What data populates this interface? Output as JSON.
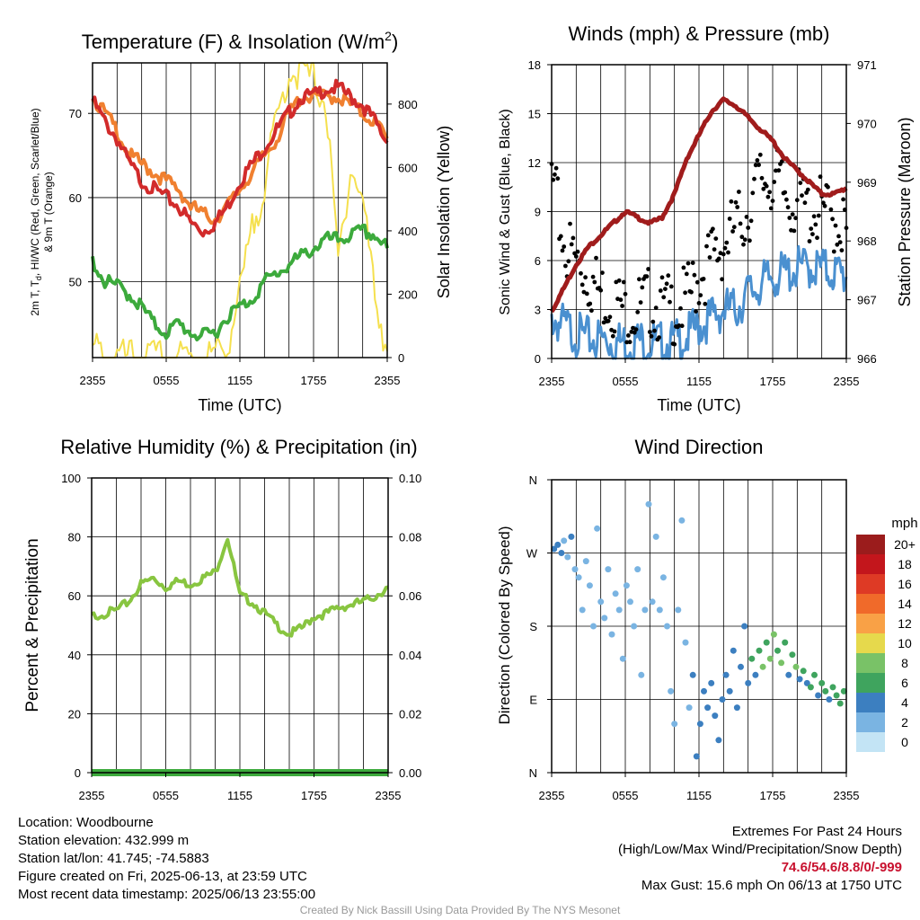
{
  "x_ticks": [
    "2355",
    "0555",
    "1155",
    "1755",
    "2355"
  ],
  "temperature_panel": {
    "title": "Temperature (F) & Insolation (W/m",
    "title_sup": "2",
    "title_end": ")",
    "xlabel": "Time (UTC)",
    "ylabel_line1_pre": "2m T, T",
    "ylabel_line1_sub": "d",
    "ylabel_line1_post": ", HI/WC (Red, Green, Scarlet/Blue)",
    "ylabel_line2": "& 9m T (Orange)",
    "y2label": "Solar Insolation (Yellow)"
  },
  "wind_panel": {
    "title": "Winds (mph) & Pressure (mb)",
    "xlabel": "Time (UTC)",
    "ylabel": "Sonic Wind & Gust (Blue, Black)",
    "y2label": "Station Pressure (Maroon)"
  },
  "rh_panel": {
    "title": "Relative Humidity (%) & Precipitation (in)",
    "ylabel": "Percent & Precipitation"
  },
  "dir_panel": {
    "title": "Wind Direction",
    "ylabel": "Direction (Colored By Speed)",
    "colorbar_title": "mph",
    "colorbar_labels": [
      "20+",
      "18",
      "16",
      "14",
      "12",
      "10",
      "8",
      "6",
      "4",
      "2",
      "0"
    ],
    "colorbar_colors": [
      "#9b1c1c",
      "#c3161c",
      "#de3a25",
      "#f06a2a",
      "#f9a146",
      "#e6d94c",
      "#79c267",
      "#3fa45e",
      "#3c7fc0",
      "#7ab4e2",
      "#c3e4f5"
    ]
  },
  "info_left": {
    "location": "Location: Woodbourne",
    "elevation": "Station elevation: 432.999 m",
    "latlon": "Station lat/lon: 41.745; -74.5883",
    "created": "Figure created on Fri, 2025-06-13, at 23:59 UTC",
    "recent": "Most recent data timestamp: 2025/06/13 23:55:00"
  },
  "info_right": {
    "line1": "Extremes For Past 24 Hours",
    "line2": "(High/Low/Max Wind/Precipitation/Snow Depth)",
    "values": "74.6/54.6/8.8/0/-999",
    "gust": "Max Gust: 15.6 mph On 06/13 at 1750 UTC"
  },
  "credit": "Created By Nick Bassill Using Data Provided By The NYS Mesonet",
  "chart_data": [
    {
      "type": "line",
      "title": "Temperature (F) & Insolation (W/m2)",
      "xlabel": "Time (UTC)",
      "ylabel": "2m T, Td, HI/WC (Red, Green, Scarlet/Blue) & 9m T (Orange)",
      "y2label": "Solar Insolation (Yellow)",
      "x": [
        0,
        1,
        2,
        3,
        4,
        5,
        6,
        7,
        8,
        9,
        10,
        11,
        12,
        13,
        14,
        15,
        16,
        17,
        18,
        19,
        20,
        21,
        22,
        23,
        24
      ],
      "x_tick_labels": [
        "2355",
        "0555",
        "1155",
        "1755",
        "2355"
      ],
      "x_tick_positions": [
        0,
        6,
        12,
        18,
        24
      ],
      "ylim": [
        41,
        76
      ],
      "yticks": [
        50,
        60,
        70
      ],
      "y2lim": [
        0,
        930
      ],
      "y2ticks": [
        0,
        200,
        400,
        600,
        800
      ],
      "series": [
        {
          "name": "2m T",
          "color": "#d22b2b",
          "axis": "left",
          "values": [
            71.5,
            69,
            67,
            64,
            62,
            61,
            60,
            59,
            57,
            56,
            57,
            59,
            62,
            64,
            66,
            68,
            70,
            72,
            72,
            73,
            73,
            72,
            71,
            69,
            66.5
          ]
        },
        {
          "name": "9m T",
          "color": "#f08030",
          "axis": "left",
          "values": [
            72,
            70,
            68,
            65,
            64,
            63,
            62,
            61,
            59,
            58,
            57.5,
            59,
            61,
            63,
            65,
            67,
            70,
            72,
            72,
            72,
            72,
            71,
            70,
            69,
            67
          ]
        },
        {
          "name": "Td",
          "color": "#3caa3c",
          "axis": "left",
          "values": [
            52.5,
            50,
            49.5,
            48.5,
            47,
            45,
            44,
            45,
            44,
            43.5,
            44,
            46,
            47,
            48,
            50,
            51,
            52,
            53,
            54,
            55,
            55,
            55.5,
            56,
            55.5,
            54
          ]
        },
        {
          "name": "Solar Insolation",
          "color": "#f5e04e",
          "axis": "right",
          "values": [
            30,
            5,
            0,
            0,
            0,
            0,
            0,
            0,
            0,
            0,
            10,
            40,
            200,
            400,
            550,
            750,
            900,
            900,
            880,
            800,
            300,
            600,
            500,
            200,
            20
          ]
        }
      ]
    },
    {
      "type": "line",
      "title": "Winds (mph) & Pressure (mb)",
      "xlabel": "Time (UTC)",
      "ylabel": "Sonic Wind & Gust (Blue, Black)",
      "y2label": "Station Pressure (Maroon)",
      "x": [
        0,
        1,
        2,
        3,
        4,
        5,
        6,
        7,
        8,
        9,
        10,
        11,
        12,
        13,
        14,
        15,
        16,
        17,
        18,
        19,
        20,
        21,
        22,
        23,
        24
      ],
      "x_tick_labels": [
        "2355",
        "0555",
        "1155",
        "1755",
        "2355"
      ],
      "ylim": [
        0,
        18
      ],
      "yticks": [
        0,
        3,
        6,
        9,
        12,
        15,
        18
      ],
      "y2lim": [
        966,
        971
      ],
      "y2ticks": [
        966,
        967,
        968,
        969,
        970,
        971
      ],
      "series": [
        {
          "name": "Sonic Wind",
          "color": "#4a90d0",
          "axis": "left",
          "values": [
            2.5,
            2,
            1.5,
            1.2,
            1.2,
            1,
            1,
            1.1,
            1,
            0.9,
            1,
            1.3,
            2,
            2.5,
            3,
            3,
            4,
            4.5,
            5,
            5.2,
            5.5,
            5.6,
            5.5,
            5.3,
            5
          ]
        },
        {
          "name": "Gust",
          "color": "#000000",
          "axis": "left",
          "values": [
            11,
            7,
            6,
            5,
            4,
            3.5,
            3,
            3,
            3.5,
            3,
            3,
            3.5,
            5,
            6,
            7,
            8,
            9,
            11,
            11,
            10,
            9.5,
            9,
            9,
            8.5,
            8
          ]
        },
        {
          "name": "Station Pressure",
          "color": "#a01c1c",
          "axis": "right",
          "values": [
            966.8,
            967.2,
            967.6,
            967.9,
            968.1,
            968.3,
            968.5,
            968.4,
            968.3,
            968.4,
            968.8,
            969.4,
            969.8,
            970.2,
            970.4,
            970.3,
            970.1,
            969.9,
            969.7,
            969.4,
            969.2,
            969.0,
            968.8,
            968.8,
            968.9
          ]
        }
      ]
    },
    {
      "type": "line",
      "title": "Relative Humidity (%) & Precipitation (in)",
      "ylabel": "Percent & Precipitation",
      "x": [
        0,
        1,
        2,
        3,
        4,
        5,
        6,
        7,
        8,
        9,
        10,
        11,
        12,
        13,
        14,
        15,
        16,
        17,
        18,
        19,
        20,
        21,
        22,
        23,
        24
      ],
      "x_tick_labels": [
        "2355",
        "0555",
        "1155",
        "1755",
        "2355"
      ],
      "ylim": [
        0,
        100
      ],
      "yticks": [
        0,
        20,
        40,
        60,
        80,
        100
      ],
      "y2lim": [
        0,
        0.1
      ],
      "y2ticks": [
        "0.00",
        "0.02",
        "0.04",
        "0.06",
        "0.08",
        "0.10"
      ],
      "series": [
        {
          "name": "Relative Humidity",
          "color": "#88c540",
          "axis": "left",
          "values": [
            53,
            54,
            55,
            58,
            64,
            66,
            63,
            65,
            64,
            66,
            68,
            80,
            60,
            58,
            54,
            50,
            47,
            49,
            53,
            54,
            56,
            57,
            58,
            60,
            63
          ]
        },
        {
          "name": "Precipitation",
          "color": "#3caa3c",
          "axis": "right",
          "values": [
            0,
            0,
            0,
            0,
            0,
            0,
            0,
            0,
            0,
            0,
            0,
            0,
            0,
            0,
            0,
            0,
            0,
            0,
            0,
            0,
            0,
            0,
            0,
            0,
            0
          ]
        }
      ]
    },
    {
      "type": "scatter",
      "title": "Wind Direction",
      "ylabel": "Direction (Colored By Speed)",
      "x_tick_labels": [
        "2355",
        "0555",
        "1155",
        "1755",
        "2355"
      ],
      "y_categories": [
        "N",
        "E",
        "S",
        "W",
        "N"
      ],
      "ylim": [
        0,
        360
      ],
      "colorbar": {
        "title": "mph",
        "levels": [
          "0",
          "2",
          "4",
          "6",
          "8",
          "10",
          "12",
          "14",
          "16",
          "18",
          "20+"
        ]
      },
      "points": [
        {
          "t": 0.2,
          "dir": 275,
          "speed": 3
        },
        {
          "t": 0.5,
          "dir": 280,
          "speed": 4
        },
        {
          "t": 0.8,
          "dir": 270,
          "speed": 3
        },
        {
          "t": 1.0,
          "dir": 285,
          "speed": 2
        },
        {
          "t": 1.3,
          "dir": 265,
          "speed": 2
        },
        {
          "t": 1.6,
          "dir": 290,
          "speed": 3
        },
        {
          "t": 1.9,
          "dir": 250,
          "speed": 1
        },
        {
          "t": 2.2,
          "dir": 240,
          "speed": 2
        },
        {
          "t": 2.5,
          "dir": 200,
          "speed": 1
        },
        {
          "t": 2.8,
          "dir": 260,
          "speed": 1
        },
        {
          "t": 3.1,
          "dir": 230,
          "speed": 2
        },
        {
          "t": 3.4,
          "dir": 180,
          "speed": 1
        },
        {
          "t": 3.7,
          "dir": 300,
          "speed": 1
        },
        {
          "t": 4.0,
          "dir": 210,
          "speed": 1
        },
        {
          "t": 4.3,
          "dir": 190,
          "speed": 2
        },
        {
          "t": 4.6,
          "dir": 250,
          "speed": 1
        },
        {
          "t": 4.9,
          "dir": 170,
          "speed": 1
        },
        {
          "t": 5.2,
          "dir": 220,
          "speed": 2
        },
        {
          "t": 5.5,
          "dir": 200,
          "speed": 1
        },
        {
          "t": 5.8,
          "dir": 140,
          "speed": 1
        },
        {
          "t": 6.1,
          "dir": 230,
          "speed": 1
        },
        {
          "t": 6.4,
          "dir": 210,
          "speed": 2
        },
        {
          "t": 6.7,
          "dir": 180,
          "speed": 1
        },
        {
          "t": 7.0,
          "dir": 250,
          "speed": 1
        },
        {
          "t": 7.3,
          "dir": 120,
          "speed": 1
        },
        {
          "t": 7.6,
          "dir": 200,
          "speed": 1
        },
        {
          "t": 7.9,
          "dir": 330,
          "speed": 1
        },
        {
          "t": 8.2,
          "dir": 210,
          "speed": 2
        },
        {
          "t": 8.5,
          "dir": 290,
          "speed": 1
        },
        {
          "t": 8.8,
          "dir": 200,
          "speed": 1
        },
        {
          "t": 9.1,
          "dir": 240,
          "speed": 2
        },
        {
          "t": 9.4,
          "dir": 180,
          "speed": 1
        },
        {
          "t": 9.7,
          "dir": 100,
          "speed": 2
        },
        {
          "t": 10.0,
          "dir": 60,
          "speed": 1
        },
        {
          "t": 10.3,
          "dir": 200,
          "speed": 1
        },
        {
          "t": 10.6,
          "dir": 310,
          "speed": 1
        },
        {
          "t": 10.9,
          "dir": 160,
          "speed": 1
        },
        {
          "t": 11.2,
          "dir": 80,
          "speed": 2
        },
        {
          "t": 11.5,
          "dir": 120,
          "speed": 3
        },
        {
          "t": 11.8,
          "dir": 20,
          "speed": 3
        },
        {
          "t": 12.1,
          "dir": 60,
          "speed": 4
        },
        {
          "t": 12.4,
          "dir": 100,
          "speed": 3
        },
        {
          "t": 12.7,
          "dir": 80,
          "speed": 4
        },
        {
          "t": 13.0,
          "dir": 110,
          "speed": 3
        },
        {
          "t": 13.3,
          "dir": 70,
          "speed": 4
        },
        {
          "t": 13.6,
          "dir": 40,
          "speed": 3
        },
        {
          "t": 13.9,
          "dir": 90,
          "speed": 4
        },
        {
          "t": 14.2,
          "dir": 120,
          "speed": 3
        },
        {
          "t": 14.5,
          "dir": 100,
          "speed": 4
        },
        {
          "t": 14.8,
          "dir": 150,
          "speed": 4
        },
        {
          "t": 15.1,
          "dir": 80,
          "speed": 3
        },
        {
          "t": 15.4,
          "dir": 130,
          "speed": 4
        },
        {
          "t": 15.7,
          "dir": 180,
          "speed": 3
        },
        {
          "t": 16.0,
          "dir": 110,
          "speed": 4
        },
        {
          "t": 16.3,
          "dir": 140,
          "speed": 5
        },
        {
          "t": 16.6,
          "dir": 120,
          "speed": 4
        },
        {
          "t": 16.9,
          "dir": 150,
          "speed": 6
        },
        {
          "t": 17.2,
          "dir": 130,
          "speed": 7
        },
        {
          "t": 17.5,
          "dir": 160,
          "speed": 6
        },
        {
          "t": 17.8,
          "dir": 140,
          "speed": 7
        },
        {
          "t": 18.1,
          "dir": 170,
          "speed": 8
        },
        {
          "t": 18.4,
          "dir": 150,
          "speed": 6
        },
        {
          "t": 18.7,
          "dir": 135,
          "speed": 7
        },
        {
          "t": 19.0,
          "dir": 160,
          "speed": 5
        },
        {
          "t": 19.3,
          "dir": 120,
          "speed": 4
        },
        {
          "t": 19.6,
          "dir": 145,
          "speed": 6
        },
        {
          "t": 19.9,
          "dir": 130,
          "speed": 7
        },
        {
          "t": 20.2,
          "dir": 115,
          "speed": 4
        },
        {
          "t": 20.5,
          "dir": 125,
          "speed": 6
        },
        {
          "t": 20.8,
          "dir": 110,
          "speed": 4
        },
        {
          "t": 21.1,
          "dir": 105,
          "speed": 5
        },
        {
          "t": 21.4,
          "dir": 120,
          "speed": 6
        },
        {
          "t": 21.7,
          "dir": 95,
          "speed": 4
        },
        {
          "t": 22.0,
          "dir": 110,
          "speed": 5
        },
        {
          "t": 22.3,
          "dir": 100,
          "speed": 6
        },
        {
          "t": 22.6,
          "dir": 90,
          "speed": 4
        },
        {
          "t": 22.9,
          "dir": 105,
          "speed": 5
        },
        {
          "t": 23.2,
          "dir": 95,
          "speed": 6
        },
        {
          "t": 23.5,
          "dir": 85,
          "speed": 5
        },
        {
          "t": 23.8,
          "dir": 100,
          "speed": 5
        }
      ]
    }
  ]
}
